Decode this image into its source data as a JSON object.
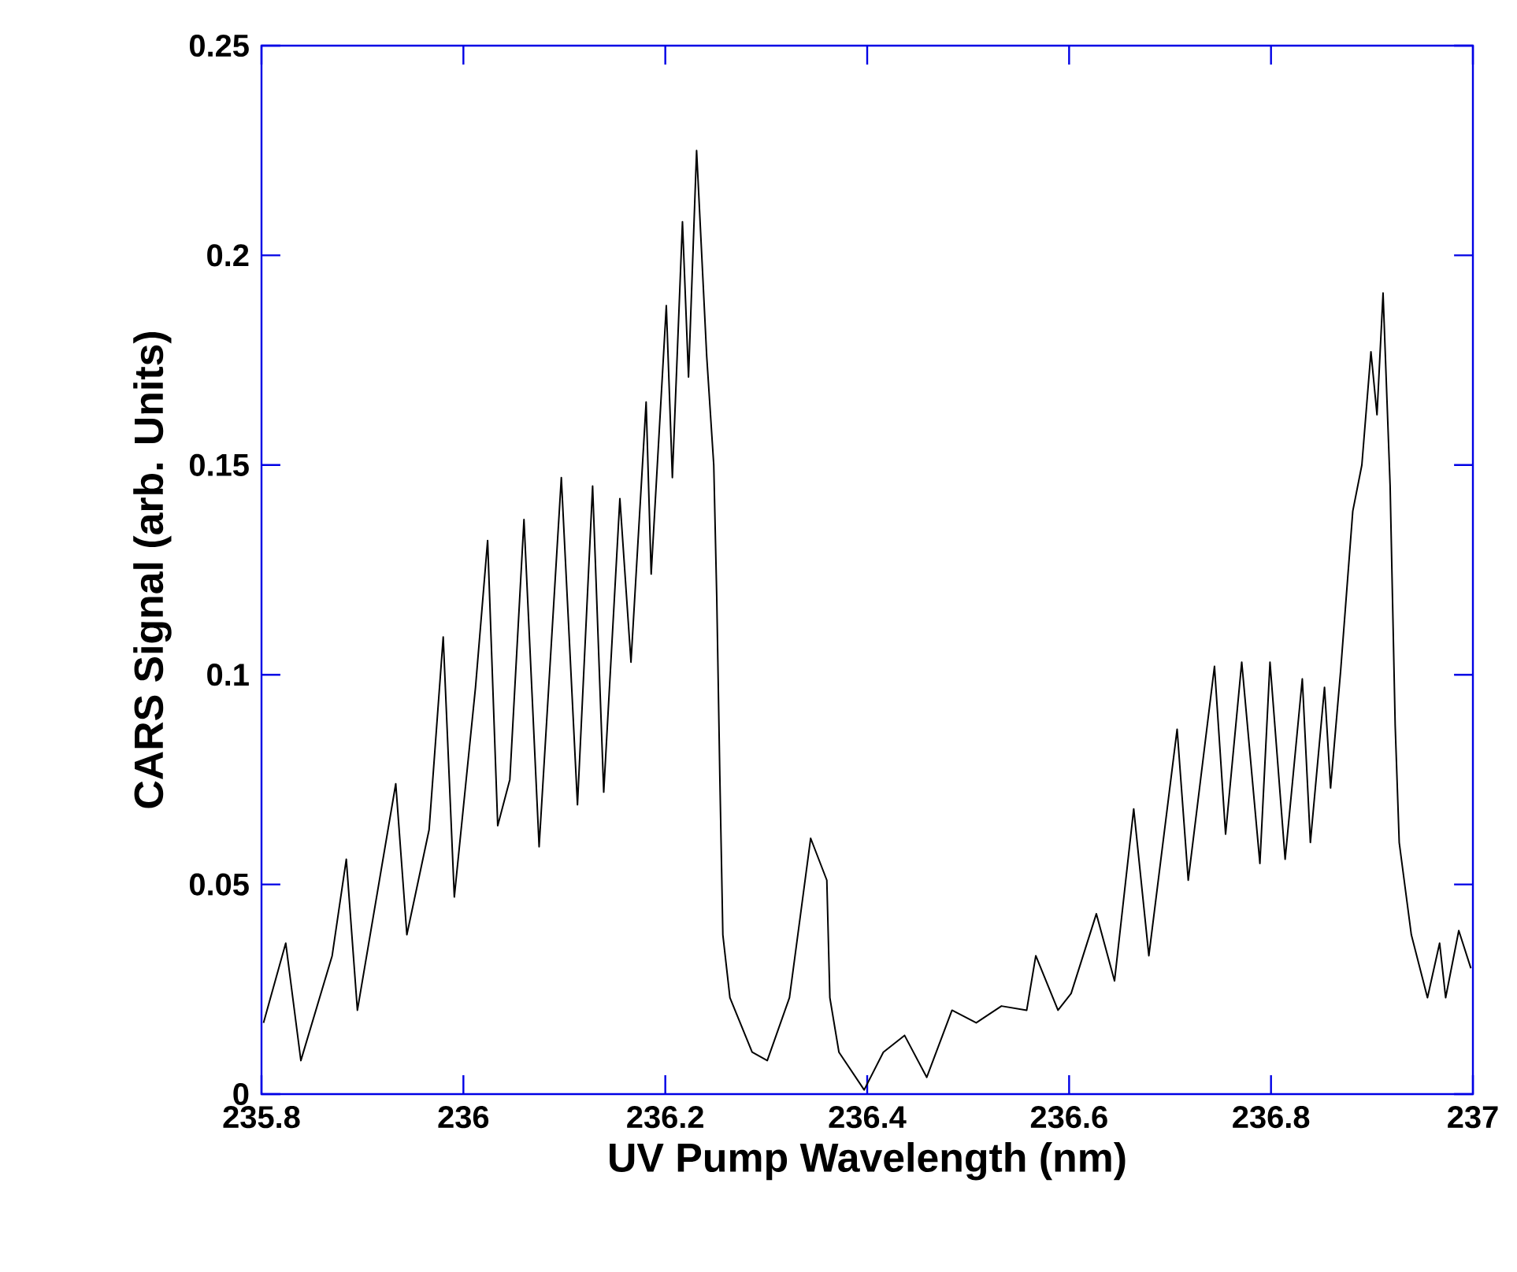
{
  "chart_data": {
    "type": "line",
    "xlabel": "UV Pump Wavelength (nm)",
    "ylabel": "CARS Signal (arb. Units)",
    "color": "#000000",
    "x": [
      235.802,
      235.824,
      235.839,
      235.87,
      235.884,
      235.895,
      235.933,
      235.944,
      235.966,
      235.98,
      235.991,
      236.012,
      236.024,
      236.034,
      236.046,
      236.06,
      236.075,
      236.097,
      236.113,
      236.128,
      236.139,
      236.155,
      236.166,
      236.181,
      236.186,
      236.201,
      236.207,
      236.217,
      236.223,
      236.231,
      236.241,
      236.248,
      236.251,
      236.254,
      236.257,
      236.264,
      236.286,
      236.301,
      236.323,
      236.344,
      236.36,
      236.363,
      236.372,
      236.397,
      236.416,
      236.437,
      236.459,
      236.484,
      236.508,
      236.533,
      236.558,
      236.567,
      236.589,
      236.602,
      236.627,
      236.645,
      236.664,
      236.679,
      236.707,
      236.718,
      236.744,
      236.755,
      236.771,
      236.789,
      236.799,
      236.814,
      236.831,
      236.839,
      236.853,
      236.859,
      236.869,
      236.881,
      236.89,
      236.899,
      236.905,
      236.911,
      236.918,
      236.923,
      236.927,
      236.939,
      236.955,
      236.967,
      236.973,
      236.986,
      236.998
    ],
    "values": [
      0.017,
      0.036,
      0.008,
      0.033,
      0.056,
      0.02,
      0.074,
      0.038,
      0.063,
      0.109,
      0.047,
      0.097,
      0.132,
      0.064,
      0.075,
      0.137,
      0.059,
      0.147,
      0.069,
      0.145,
      0.072,
      0.142,
      0.103,
      0.165,
      0.124,
      0.188,
      0.147,
      0.208,
      0.171,
      0.225,
      0.176,
      0.15,
      0.118,
      0.076,
      0.038,
      0.023,
      0.01,
      0.008,
      0.023,
      0.061,
      0.051,
      0.023,
      0.01,
      0.001,
      0.01,
      0.014,
      0.004,
      0.02,
      0.017,
      0.021,
      0.02,
      0.033,
      0.02,
      0.024,
      0.043,
      0.027,
      0.068,
      0.033,
      0.087,
      0.051,
      0.102,
      0.062,
      0.103,
      0.055,
      0.103,
      0.056,
      0.099,
      0.06,
      0.097,
      0.073,
      0.101,
      0.139,
      0.15,
      0.177,
      0.162,
      0.191,
      0.145,
      0.088,
      0.06,
      0.038,
      0.023,
      0.036,
      0.023,
      0.039,
      0.03
    ],
    "xlim": [
      235.8,
      237
    ],
    "ylim": [
      0,
      0.25
    ],
    "xticks": [
      235.8,
      236,
      236.2,
      236.4,
      236.6,
      236.8,
      237
    ],
    "yticks": [
      0,
      0.05,
      0.1,
      0.15,
      0.2,
      0.25
    ]
  }
}
